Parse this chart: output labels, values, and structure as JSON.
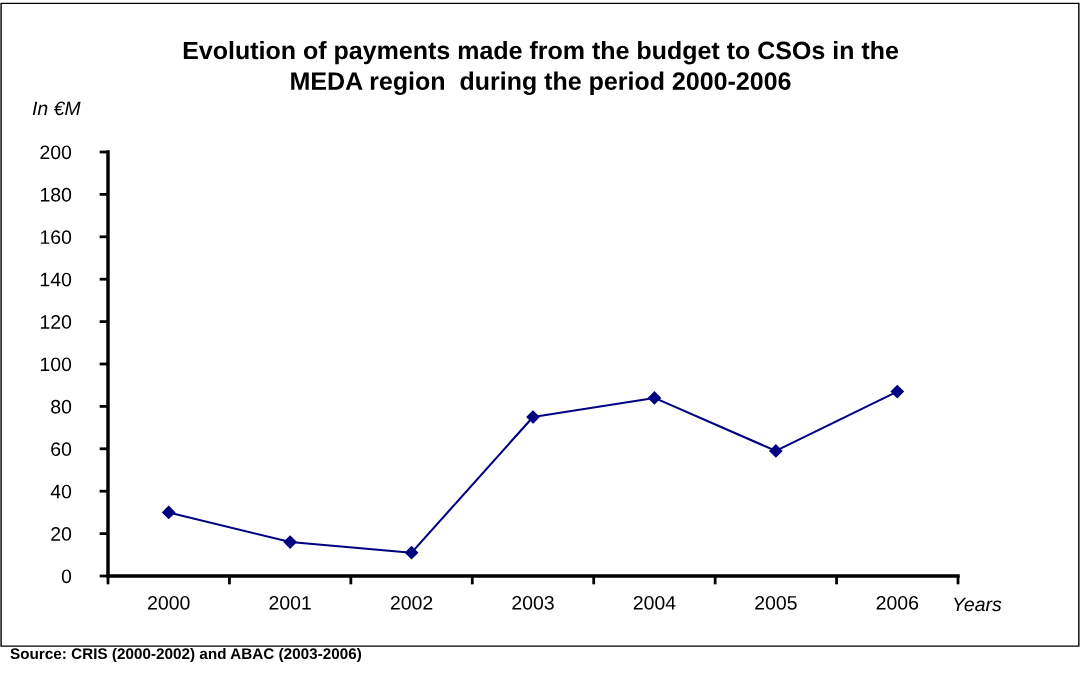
{
  "chart_data": {
    "type": "line",
    "title": "Evolution of payments made from the budget to CSOs in the\nMEDA region  during the period 2000-2006",
    "ylabel": "In €M",
    "xlabel": "Years",
    "categories": [
      "2000",
      "2001",
      "2002",
      "2003",
      "2004",
      "2005",
      "2006"
    ],
    "series": [
      {
        "color": "#000080",
        "values": [
          30,
          16,
          11,
          75,
          84,
          59,
          87
        ]
      }
    ],
    "ylim": [
      0,
      200
    ],
    "yticks": [
      0,
      20,
      40,
      60,
      80,
      100,
      120,
      140,
      160,
      180,
      200
    ],
    "grid": false,
    "legend": false,
    "marker": "diamond",
    "line_style": "solid",
    "annotations": [
      "Source: CRIS (2000-2002) and ABAC (2003-2006)"
    ]
  }
}
